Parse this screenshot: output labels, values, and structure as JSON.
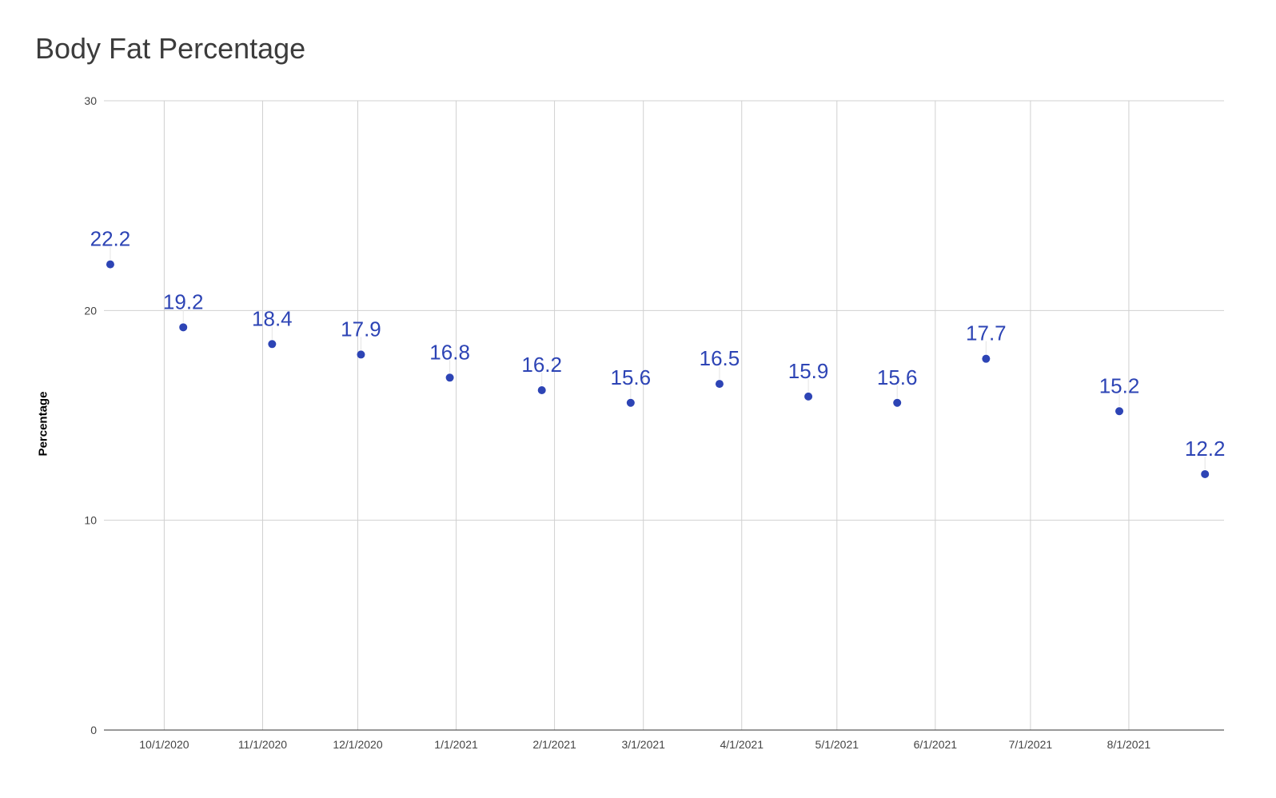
{
  "chart_data": {
    "type": "scatter",
    "title": "Body Fat Percentage",
    "xlabel": "",
    "ylabel": "Percentage",
    "ylim": [
      0,
      30
    ],
    "yticks": [
      0,
      10,
      20,
      30
    ],
    "xlim": [
      "2020-09-12",
      "2021-08-31"
    ],
    "xticks": [
      "10/1/2020",
      "11/1/2020",
      "12/1/2020",
      "1/1/2021",
      "2/1/2021",
      "3/1/2021",
      "4/1/2021",
      "5/1/2021",
      "6/1/2021",
      "7/1/2021",
      "8/1/2021"
    ],
    "grid": true,
    "legend": "none",
    "series": [
      {
        "color": "#2d44b5",
        "points": [
          {
            "x": "2020-09-14",
            "y": 22.2,
            "label": "22.2"
          },
          {
            "x": "2020-10-07",
            "y": 19.2,
            "label": "19.2"
          },
          {
            "x": "2020-11-04",
            "y": 18.4,
            "label": "18.4"
          },
          {
            "x": "2020-12-02",
            "y": 17.9,
            "label": "17.9"
          },
          {
            "x": "2020-12-30",
            "y": 16.8,
            "label": "16.8"
          },
          {
            "x": "2021-01-28",
            "y": 16.2,
            "label": "16.2"
          },
          {
            "x": "2021-02-25",
            "y": 15.6,
            "label": "15.6"
          },
          {
            "x": "2021-03-25",
            "y": 16.5,
            "label": "16.5"
          },
          {
            "x": "2021-04-22",
            "y": 15.9,
            "label": "15.9"
          },
          {
            "x": "2021-05-20",
            "y": 15.6,
            "label": "15.6"
          },
          {
            "x": "2021-06-17",
            "y": 17.7,
            "label": "17.7"
          },
          {
            "x": "2021-07-29",
            "y": 15.2,
            "label": "15.2"
          },
          {
            "x": "2021-08-25",
            "y": 12.2,
            "label": "12.2"
          }
        ]
      }
    ]
  }
}
